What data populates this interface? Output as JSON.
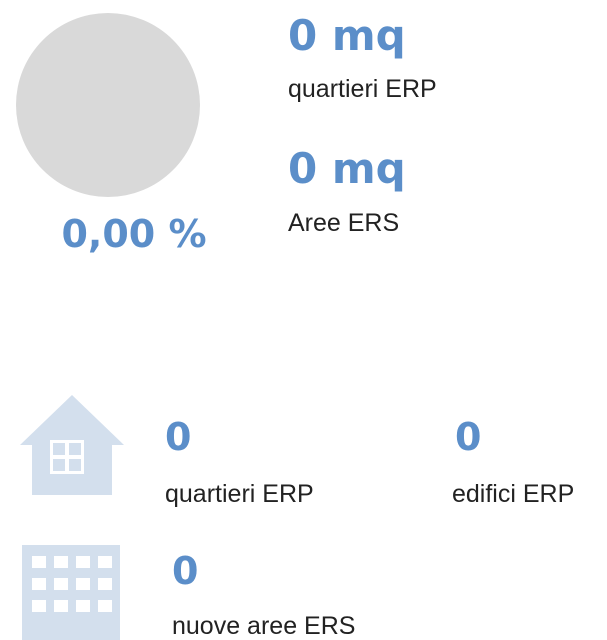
{
  "summary": {
    "percent": "0,00 %",
    "areas": [
      {
        "value": "0 mq",
        "label": "quartieri ERP"
      },
      {
        "value": "0 mq",
        "label": "Aree ERS"
      }
    ]
  },
  "counts": [
    {
      "value": "0",
      "label": "quartieri ERP"
    },
    {
      "value": "0",
      "label": "edifici ERP"
    },
    {
      "value": "0",
      "label": "nuove aree ERS"
    }
  ]
}
